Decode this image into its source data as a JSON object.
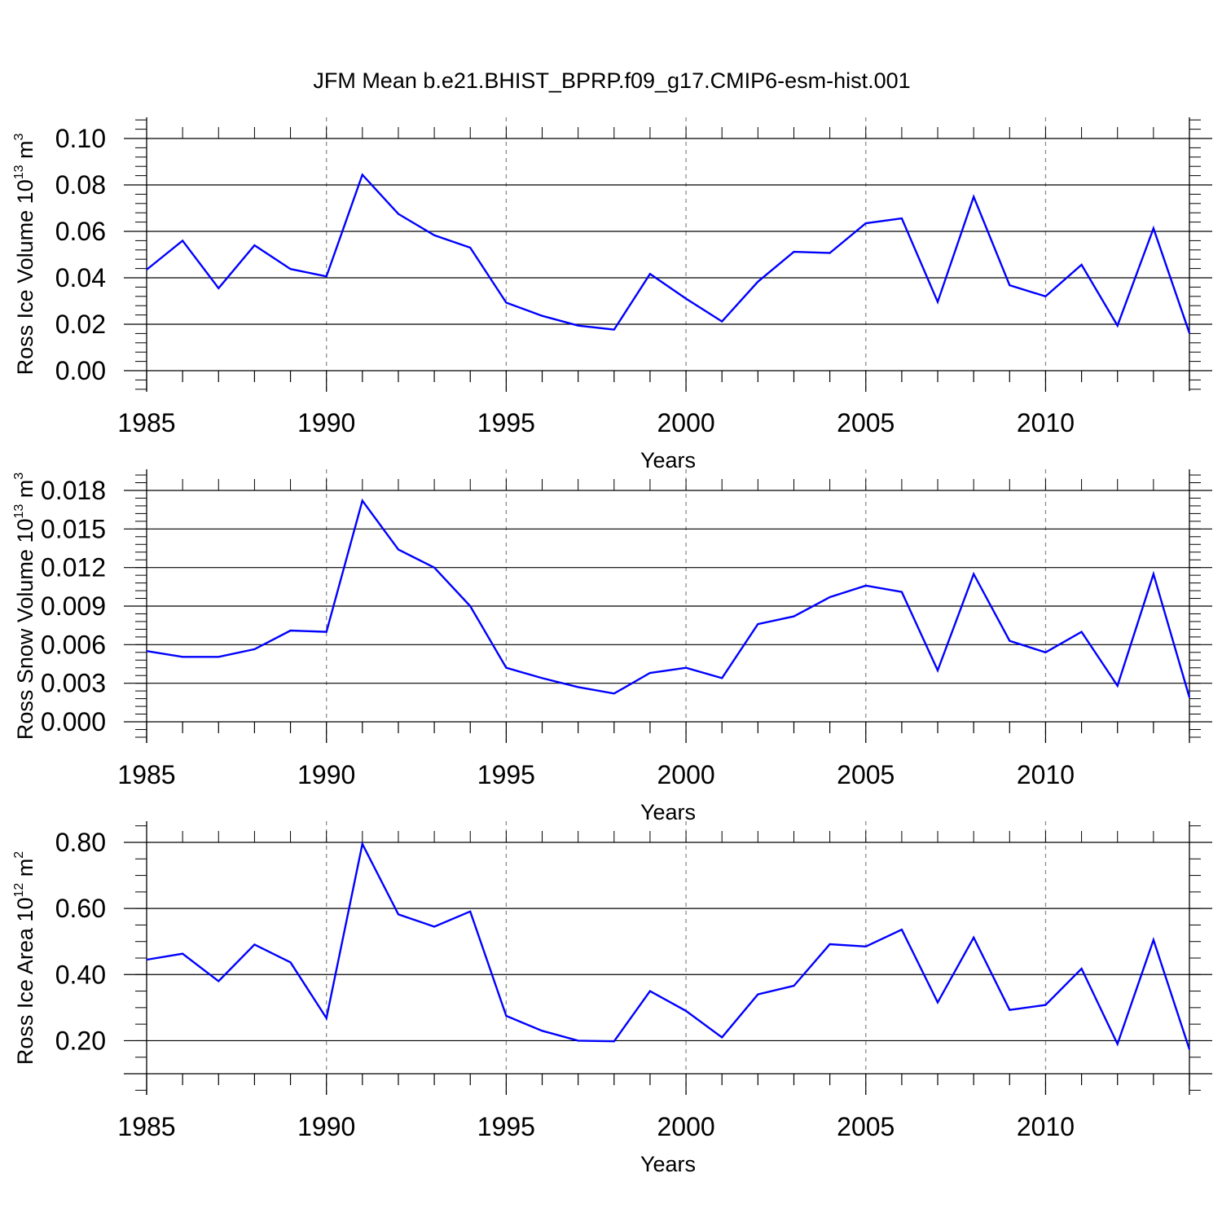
{
  "title": "JFM Mean b.e21.BHIST_BPRP.f09_g17.CMIP6-esm-hist.001",
  "colors": {
    "series": "#0000ff",
    "axis": "#000000",
    "grid": "#8c8c8c"
  },
  "chart_data": [
    {
      "type": "line",
      "title": "",
      "xlabel": "Years",
      "ylabel": {
        "main": "Ross Ice Volume 10",
        "sup1": "13",
        "unit": " m",
        "sup2": "3"
      },
      "xlim": [
        1985,
        2014
      ],
      "ylim": [
        0.0,
        0.1
      ],
      "grid": "dashed vertical at major x ticks",
      "x_ticks": [
        1985,
        1990,
        1995,
        2000,
        2005,
        2010
      ],
      "x_tick_labels": [
        "1985",
        "1990",
        "1995",
        "2000",
        "2005",
        "2010"
      ],
      "y_ticks": [
        0.0,
        0.02,
        0.04,
        0.06,
        0.08,
        0.1
      ],
      "y_tick_labels": [
        "0.00",
        "0.02",
        "0.04",
        "0.06",
        "0.08",
        "0.10"
      ],
      "y_minor_step": 0.004,
      "x": [
        1985,
        1986,
        1987,
        1988,
        1989,
        1990,
        1991,
        1992,
        1993,
        1994,
        1995,
        1996,
        1997,
        1998,
        1999,
        2000,
        2001,
        2002,
        2003,
        2004,
        2005,
        2006,
        2007,
        2008,
        2009,
        2010,
        2011,
        2012,
        2013,
        2014
      ],
      "series": [
        {
          "values": [
            0.0435,
            0.056,
            0.0355,
            0.054,
            0.0438,
            0.0406,
            0.0844,
            0.0675,
            0.0583,
            0.053,
            0.0293,
            0.0236,
            0.0194,
            0.0177,
            0.0417,
            0.031,
            0.0212,
            0.0383,
            0.0512,
            0.0507,
            0.0635,
            0.0656,
            0.0296,
            0.0749,
            0.0368,
            0.032,
            0.0456,
            0.0194,
            0.0613,
            0.0162
          ]
        }
      ]
    },
    {
      "type": "line",
      "title": "",
      "xlabel": "Years",
      "ylabel": {
        "main": "Ross Snow Volume 10",
        "sup1": "13",
        "unit": " m",
        "sup2": "3"
      },
      "xlim": [
        1985,
        2014
      ],
      "ylim": [
        0.0,
        0.018
      ],
      "grid": "dashed vertical at major x ticks",
      "x_ticks": [
        1985,
        1990,
        1995,
        2000,
        2005,
        2010
      ],
      "x_tick_labels": [
        "1985",
        "1990",
        "1995",
        "2000",
        "2005",
        "2010"
      ],
      "y_ticks": [
        0.0,
        0.003,
        0.006,
        0.009,
        0.012,
        0.015,
        0.018
      ],
      "y_tick_labels": [
        "0.000",
        "0.003",
        "0.006",
        "0.009",
        "0.012",
        "0.015",
        "0.018"
      ],
      "y_minor_step": 0.0006,
      "x": [
        1985,
        1986,
        1987,
        1988,
        1989,
        1990,
        1991,
        1992,
        1993,
        1994,
        1995,
        1996,
        1997,
        1998,
        1999,
        2000,
        2001,
        2002,
        2003,
        2004,
        2005,
        2006,
        2007,
        2008,
        2009,
        2010,
        2011,
        2012,
        2013,
        2014
      ],
      "series": [
        {
          "values": [
            0.0055,
            0.00505,
            0.00505,
            0.00565,
            0.0071,
            0.007,
            0.0172,
            0.0134,
            0.012,
            0.009,
            0.0042,
            0.0034,
            0.0027,
            0.0022,
            0.0038,
            0.0042,
            0.0034,
            0.0076,
            0.0082,
            0.0097,
            0.0106,
            0.0101,
            0.004,
            0.0115,
            0.0063,
            0.0054,
            0.007,
            0.0028,
            0.0115,
            0.0019
          ]
        }
      ]
    },
    {
      "type": "line",
      "title": "",
      "xlabel": "Years",
      "ylabel": {
        "main": "Ross Ice Area 10",
        "sup1": "12",
        "unit": " m",
        "sup2": "2"
      },
      "xlim": [
        1985,
        2014
      ],
      "ylim": [
        0.1,
        0.8
      ],
      "grid": "dashed vertical at major x ticks",
      "x_ticks": [
        1985,
        1990,
        1995,
        2000,
        2005,
        2010
      ],
      "x_tick_labels": [
        "1985",
        "1990",
        "1995",
        "2000",
        "2005",
        "2010"
      ],
      "y_ticks": [
        0.2,
        0.4,
        0.6,
        0.8
      ],
      "y_tick_labels": [
        "0.20",
        "0.40",
        "0.60",
        "0.80"
      ],
      "y_minor_step": 0.05,
      "x": [
        1985,
        1986,
        1987,
        1988,
        1989,
        1990,
        1991,
        1992,
        1993,
        1994,
        1995,
        1996,
        1997,
        1998,
        1999,
        2000,
        2001,
        2002,
        2003,
        2004,
        2005,
        2006,
        2007,
        2008,
        2009,
        2010,
        2011,
        2012,
        2013,
        2014
      ],
      "series": [
        {
          "values": [
            0.445,
            0.463,
            0.38,
            0.491,
            0.437,
            0.268,
            0.795,
            0.582,
            0.545,
            0.591,
            0.275,
            0.23,
            0.2,
            0.198,
            0.35,
            0.29,
            0.21,
            0.34,
            0.366,
            0.492,
            0.485,
            0.536,
            0.316,
            0.512,
            0.293,
            0.308,
            0.418,
            0.19,
            0.505,
            0.174
          ]
        }
      ]
    }
  ]
}
